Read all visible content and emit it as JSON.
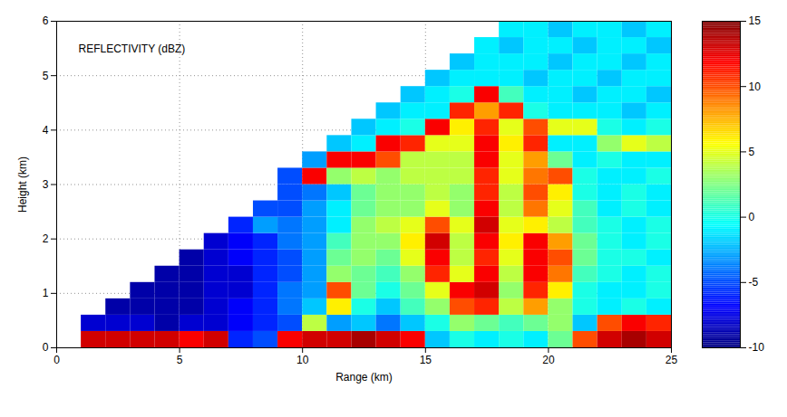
{
  "chart_data": {
    "type": "heatmap",
    "title": "REFLECTIVITY (dBZ)",
    "x_label": "Range (km)",
    "y_label": "Height (km)",
    "xlim": [
      0,
      25
    ],
    "xticks": [
      0,
      5,
      10,
      15,
      20,
      25
    ],
    "ylim": [
      0,
      6
    ],
    "yticks": [
      0,
      1,
      2,
      3,
      4,
      5,
      6
    ],
    "grid": true,
    "x": [
      0.5,
      1.5,
      2.5,
      3.5,
      4.5,
      5.5,
      6.5,
      7.5,
      8.5,
      9.5,
      10.5,
      11.5,
      12.5,
      13.5,
      14.5,
      15.5,
      16.5,
      17.5,
      18.5,
      19.5,
      20.5,
      21.5,
      22.5,
      23.5,
      24.5
    ],
    "y": [
      0.15,
      0.45,
      0.75,
      1.05,
      1.35,
      1.65,
      1.95,
      2.25,
      2.55,
      2.85,
      3.15,
      3.45,
      3.75,
      4.05,
      4.35,
      4.65,
      4.95,
      5.25,
      5.55,
      5.85
    ],
    "values": [
      [
        null,
        13,
        13,
        13,
        13,
        12,
        13,
        -6,
        -5,
        12,
        13,
        13,
        14,
        13,
        12,
        -2,
        0,
        -1,
        0,
        -1,
        2,
        10,
        13,
        14,
        13
      ],
      [
        null,
        -8,
        -8,
        -8,
        -9,
        -8,
        -8,
        -7,
        -6,
        -5,
        4,
        -3,
        -2,
        -4,
        -2,
        0,
        3,
        2,
        1,
        2,
        3,
        -2,
        10,
        12,
        11
      ],
      [
        null,
        null,
        -9,
        -9,
        -9,
        -9,
        -8,
        -7,
        -6,
        -4,
        -2,
        6,
        0,
        -2,
        1,
        3,
        10,
        11,
        4,
        8,
        3,
        0,
        -1,
        0,
        -1
      ],
      [
        null,
        null,
        null,
        -9,
        -9,
        -9,
        -8,
        -8,
        -6,
        -4,
        -3,
        10,
        2,
        0,
        2,
        5,
        12,
        13,
        3,
        11,
        6,
        0,
        -1,
        -1,
        0
      ],
      [
        null,
        null,
        null,
        null,
        -9,
        -9,
        -8,
        -8,
        -6,
        -5,
        -3,
        3,
        2,
        1,
        3,
        11,
        5,
        12,
        4,
        12,
        9,
        1,
        0,
        -1,
        0
      ],
      [
        null,
        null,
        null,
        null,
        null,
        -9,
        -8,
        -7,
        -6,
        -5,
        -3,
        2,
        3,
        2,
        5,
        12,
        4,
        11,
        5,
        12,
        10,
        2,
        0,
        0,
        -1
      ],
      [
        null,
        null,
        null,
        null,
        null,
        null,
        -8,
        -7,
        -6,
        -4,
        -3,
        1,
        3,
        3,
        6,
        13,
        4,
        12,
        6,
        12,
        8,
        2,
        0,
        -1,
        0
      ],
      [
        null,
        null,
        null,
        null,
        null,
        null,
        null,
        -6,
        -3,
        -4,
        -3,
        -1,
        3,
        4,
        5,
        10,
        5,
        13,
        5,
        6,
        4,
        1,
        0,
        -1,
        0
      ],
      [
        null,
        null,
        null,
        null,
        null,
        null,
        null,
        null,
        -5,
        -5,
        -3,
        -1,
        2,
        3,
        3,
        5,
        3,
        12,
        4,
        9,
        5,
        1,
        -1,
        0,
        -1
      ],
      [
        null,
        null,
        null,
        null,
        null,
        null,
        null,
        null,
        null,
        -5,
        -4,
        -2,
        2,
        3,
        3,
        4,
        3,
        11,
        4,
        10,
        6,
        0,
        -1,
        0,
        -1
      ],
      [
        null,
        null,
        null,
        null,
        null,
        null,
        null,
        null,
        null,
        -5,
        12,
        3,
        4,
        3,
        4,
        4,
        4,
        11,
        5,
        9,
        10,
        0,
        -1,
        -1,
        0
      ],
      [
        null,
        null,
        null,
        null,
        null,
        null,
        null,
        null,
        null,
        null,
        -3,
        12,
        12,
        10,
        4,
        4,
        4,
        12,
        5,
        8,
        2,
        -1,
        0,
        -1,
        -1
      ],
      [
        null,
        null,
        null,
        null,
        null,
        null,
        null,
        null,
        null,
        null,
        null,
        -2,
        -1,
        12,
        11,
        5,
        5,
        12,
        6,
        11,
        -1,
        -1,
        3,
        5,
        4
      ],
      [
        null,
        null,
        null,
        null,
        null,
        null,
        null,
        null,
        null,
        null,
        null,
        null,
        -2,
        -1,
        0,
        12,
        6,
        11,
        5,
        10,
        5,
        5,
        0,
        -1,
        0
      ],
      [
        null,
        null,
        null,
        null,
        null,
        null,
        null,
        null,
        null,
        null,
        null,
        null,
        null,
        -2,
        -1,
        -1,
        11,
        8,
        11,
        0,
        -1,
        -1,
        -1,
        -2,
        -1
      ],
      [
        null,
        null,
        null,
        null,
        null,
        null,
        null,
        null,
        null,
        null,
        null,
        null,
        null,
        null,
        -2,
        -1,
        0,
        12,
        1,
        -1,
        -1,
        -2,
        -1,
        -1,
        -2
      ],
      [
        null,
        null,
        null,
        null,
        null,
        null,
        null,
        null,
        null,
        null,
        null,
        null,
        null,
        null,
        null,
        -2,
        -1,
        -1,
        -1,
        -2,
        -1,
        -1,
        -2,
        -1,
        -1
      ],
      [
        null,
        null,
        null,
        null,
        null,
        null,
        null,
        null,
        null,
        null,
        null,
        null,
        null,
        null,
        null,
        null,
        -2,
        -1,
        -1,
        -1,
        -2,
        -1,
        -1,
        -2,
        -1
      ],
      [
        null,
        null,
        null,
        null,
        null,
        null,
        null,
        null,
        null,
        null,
        null,
        null,
        null,
        null,
        null,
        null,
        null,
        -1,
        -2,
        -1,
        -1,
        -2,
        -1,
        -1,
        -2
      ],
      [
        null,
        null,
        null,
        null,
        null,
        null,
        null,
        null,
        null,
        null,
        null,
        null,
        null,
        null,
        null,
        null,
        null,
        null,
        -1,
        -1,
        -2,
        -1,
        -1,
        -2,
        -1
      ]
    ],
    "colorbar": {
      "lim": [
        -10,
        15
      ],
      "ticks": [
        -10,
        -5,
        0,
        5,
        10,
        15
      ]
    }
  }
}
